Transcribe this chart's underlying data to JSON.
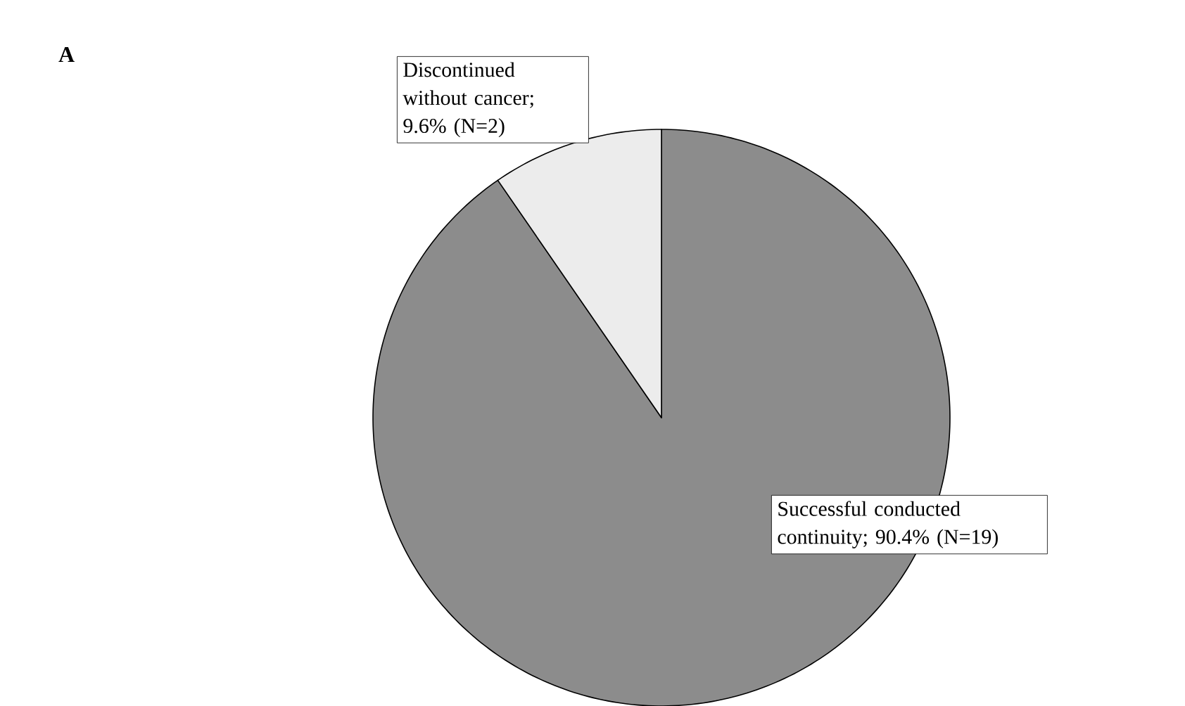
{
  "chart_data": {
    "type": "pie",
    "title": "A",
    "categories": [
      "Successful conducted continuity; 90.4% (N=19)",
      "Discontinued without cancer; 9.6% (N=2)"
    ],
    "values": [
      90.4,
      9.6
    ],
    "colors": [
      "#8c8c8c",
      "#ececec"
    ]
  }
}
